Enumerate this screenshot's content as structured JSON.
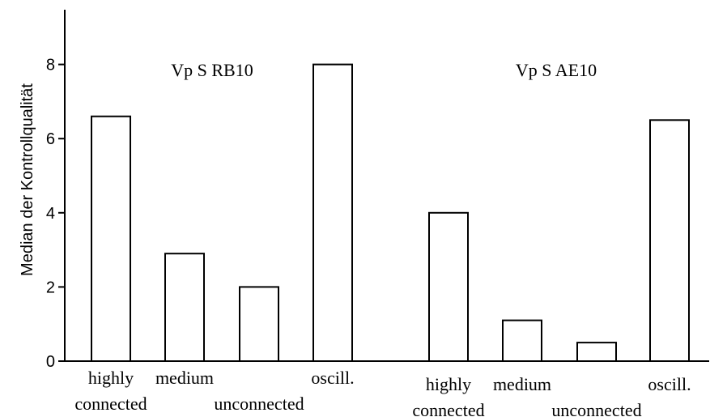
{
  "chart_data": {
    "type": "bar",
    "ylabel": "Median der Kontrollqualität",
    "ylim": [
      0,
      9.5
    ],
    "yticks": [
      "0",
      "2",
      "4",
      "6",
      "8"
    ],
    "grid": false,
    "groups": [
      {
        "title": "Vp S RB10",
        "categories": [
          "highly connected",
          "medium",
          "unconnected",
          "oscill."
        ],
        "values": [
          6.6,
          2.9,
          2.0,
          8.0
        ]
      },
      {
        "title": "Vp S AE10",
        "categories": [
          "highly connected",
          "medium",
          "unconnected",
          "oscill."
        ],
        "values": [
          4.0,
          1.1,
          0.5,
          6.5
        ]
      }
    ],
    "labels": [
      {
        "line1": "highly",
        "line2": "connected"
      },
      {
        "line1": "medium",
        "line2": ""
      },
      {
        "line1": "",
        "line2": "unconnected"
      },
      {
        "line1": "oscill.",
        "line2": ""
      },
      {
        "line1": "highly",
        "line2": "connected"
      },
      {
        "line1": "medium",
        "line2": ""
      },
      {
        "line1": "",
        "line2": "unconnected"
      },
      {
        "line1": "oscill.",
        "line2": ""
      }
    ]
  }
}
